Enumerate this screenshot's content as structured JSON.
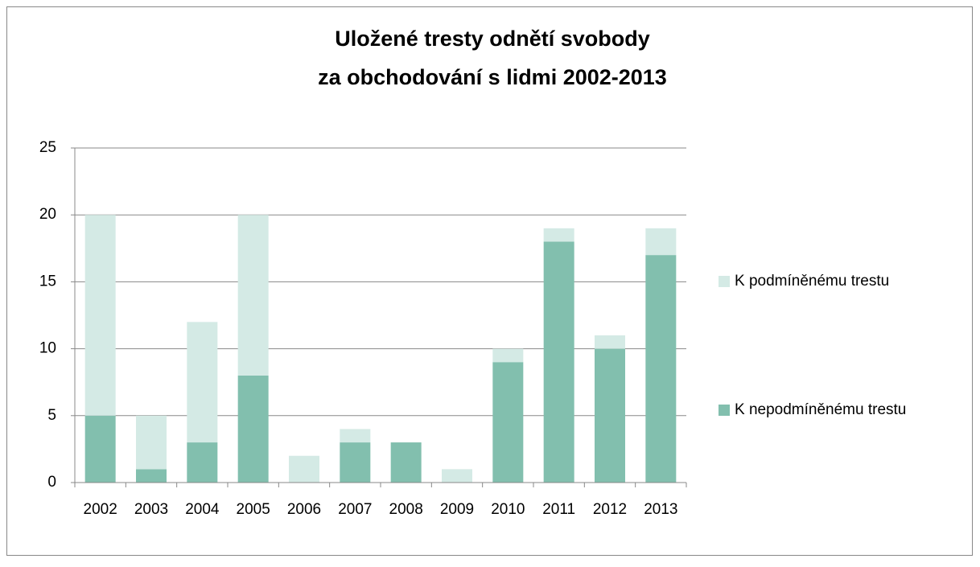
{
  "chart_data": {
    "type": "stacked_bar",
    "title": [
      "Uložené tresty odnětí svobody",
      "za obchodování  s lidmi 2002-2013"
    ],
    "categories": [
      "2002",
      "2003",
      "2004",
      "2005",
      "2006",
      "2007",
      "2008",
      "2009",
      "2010",
      "2011",
      "2012",
      "2013"
    ],
    "series": [
      {
        "name": "K nepodmíněnému trestu",
        "color": "#82bfae",
        "values": [
          5,
          1,
          3,
          8,
          0,
          3,
          3,
          0,
          9,
          18,
          10,
          17
        ]
      },
      {
        "name": "K podmíněnému trestu",
        "color": "#d4eae5",
        "values": [
          15,
          4,
          9,
          12,
          2,
          1,
          0,
          1,
          1,
          1,
          1,
          2
        ]
      }
    ],
    "ylim": [
      0,
      25
    ],
    "yticks": [
      0,
      5,
      10,
      15,
      20,
      25
    ],
    "grid": true,
    "legend": "right"
  }
}
